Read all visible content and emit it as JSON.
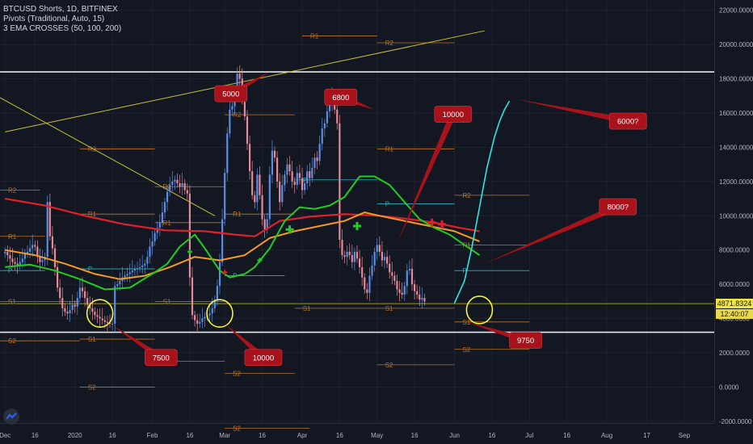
{
  "legend": {
    "symbol": "BTCUSD Shorts, 1D, BITFINEX",
    "pivots": "Pivots (Traditional, Auto, 15)",
    "ema": "3 EMA CROSSES (50, 100, 200)"
  },
  "colors": {
    "background": "#131722",
    "candle_up": "#5b8ee6",
    "candle_down": "#e88a9a",
    "ema50": "#22cc22",
    "ema100": "#f59a23",
    "ema200": "#e0202a",
    "projection": "#2ee6e6",
    "pivot": "#b8762c",
    "pivot_p": "#2ab3c0",
    "trend": "#c8c038",
    "annotation": "#a8121a",
    "highlight": "#f5f542"
  },
  "price_tag": "4871.8324",
  "time_tag": "12:40:07",
  "chart_data": {
    "type": "candlestick",
    "series_label": "BTCUSD Shorts",
    "timeframe": "1D",
    "y_ticks": [
      "22000.0000",
      "20000.0000",
      "18000.0000",
      "16000.0000",
      "14000.0000",
      "12000.0000",
      "10000.0000",
      "8000.0000",
      "6000.0000",
      "4000.0000",
      "2000.0000",
      "0.0000",
      "-2000.0000"
    ],
    "ylim": [
      -2100,
      22600
    ],
    "x_ticks": [
      {
        "label": "Dec",
        "i": 0
      },
      {
        "label": "16",
        "i": 12
      },
      {
        "label": "2020",
        "i": 28
      },
      {
        "label": "16",
        "i": 43
      },
      {
        "label": "Feb",
        "i": 59
      },
      {
        "label": "16",
        "i": 74
      },
      {
        "label": "Mar",
        "i": 88
      },
      {
        "label": "16",
        "i": 103
      },
      {
        "label": "Apr",
        "i": 119
      },
      {
        "label": "16",
        "i": 134
      },
      {
        "label": "May",
        "i": 149
      },
      {
        "label": "16",
        "i": 164
      },
      {
        "label": "Jun",
        "i": 180
      },
      {
        "label": "16",
        "i": 195
      },
      {
        "label": "Jul",
        "i": 210
      },
      {
        "label": "16",
        "i": 225
      },
      {
        "label": "Aug",
        "i": 241
      },
      {
        "label": "17",
        "i": 257
      },
      {
        "label": "Sep",
        "i": 272
      }
    ],
    "xlim": [
      -2,
      284
    ],
    "closes": [
      7900,
      7700,
      7500,
      7300,
      7200,
      7100,
      7300,
      7500,
      7800,
      7900,
      8100,
      8300,
      8200,
      7600,
      7300,
      7400,
      7600,
      10800,
      8800,
      8100,
      7000,
      5800,
      5200,
      4600,
      4400,
      4300,
      4500,
      4800,
      4700,
      5200,
      5800,
      5600,
      5200,
      4800,
      4600,
      4400,
      4200,
      4100,
      4000,
      3900,
      3800,
      3750,
      3700,
      3700,
      5900,
      6000,
      6200,
      6400,
      6500,
      6600,
      6700,
      6800,
      6900,
      6950,
      7000,
      7100,
      7200,
      7600,
      8200,
      8500,
      9000,
      9300,
      9600,
      10200,
      10800,
      11400,
      11800,
      12000,
      12100,
      11900,
      11700,
      11900,
      11500,
      11300,
      6400,
      4200,
      3900,
      3700,
      3800,
      4000,
      4100,
      4200,
      4300,
      4600,
      5100,
      5900,
      7300,
      9800,
      12500,
      14800,
      16200,
      16400,
      17200,
      18300,
      18000,
      17000,
      15800,
      14200,
      12600,
      11200,
      10800,
      12400,
      11200,
      9800,
      9200,
      9800,
      12400,
      13800,
      13400,
      12000,
      10800,
      11800,
      12400,
      13000,
      12600,
      12000,
      11800,
      12500,
      12200,
      11500,
      11900,
      12600,
      12200,
      12800,
      13400,
      13200,
      14200,
      15100,
      15400,
      16100,
      16600,
      16900,
      16200,
      15400,
      8600,
      7700,
      7600,
      7900,
      7700,
      7300,
      7900,
      7500,
      7000,
      6400,
      5700,
      5500,
      6500,
      7100,
      7900,
      8300,
      7900,
      7400,
      7600,
      7200,
      6700,
      6500,
      6200,
      5700,
      5500,
      5400,
      5900,
      6800,
      6900,
      6000,
      5600,
      5400,
      5100,
      5200,
      5000
    ],
    "ema50": [
      [
        0,
        7000
      ],
      [
        10,
        7150
      ],
      [
        20,
        6800
      ],
      [
        30,
        6300
      ],
      [
        40,
        5700
      ],
      [
        50,
        5800
      ],
      [
        60,
        6700
      ],
      [
        65,
        7200
      ],
      [
        70,
        8200
      ],
      [
        76,
        8900
      ],
      [
        80,
        8100
      ],
      [
        86,
        6800
      ],
      [
        90,
        6400
      ],
      [
        96,
        6600
      ],
      [
        100,
        7000
      ],
      [
        106,
        8100
      ],
      [
        112,
        9700
      ],
      [
        118,
        10500
      ],
      [
        124,
        10400
      ],
      [
        130,
        10600
      ],
      [
        136,
        11100
      ],
      [
        142,
        12300
      ],
      [
        148,
        12300
      ],
      [
        154,
        11800
      ],
      [
        160,
        10800
      ],
      [
        166,
        9800
      ],
      [
        172,
        9300
      ],
      [
        178,
        8900
      ],
      [
        184,
        8300
      ],
      [
        190,
        7700
      ]
    ],
    "ema100": [
      [
        0,
        8000
      ],
      [
        12,
        7700
      ],
      [
        24,
        7200
      ],
      [
        36,
        6600
      ],
      [
        46,
        6300
      ],
      [
        56,
        6500
      ],
      [
        66,
        7000
      ],
      [
        76,
        7600
      ],
      [
        86,
        7400
      ],
      [
        96,
        7700
      ],
      [
        106,
        8700
      ],
      [
        116,
        9100
      ],
      [
        126,
        9400
      ],
      [
        136,
        9700
      ],
      [
        144,
        10200
      ],
      [
        150,
        10000
      ],
      [
        160,
        9700
      ],
      [
        170,
        9400
      ],
      [
        180,
        9100
      ],
      [
        190,
        8500
      ]
    ],
    "ema200": [
      [
        0,
        11000
      ],
      [
        16,
        10600
      ],
      [
        32,
        10000
      ],
      [
        48,
        9500
      ],
      [
        64,
        9150
      ],
      [
        80,
        9100
      ],
      [
        92,
        8900
      ],
      [
        100,
        8800
      ],
      [
        110,
        9700
      ],
      [
        122,
        9950
      ],
      [
        136,
        10100
      ],
      [
        150,
        10000
      ],
      [
        162,
        9800
      ],
      [
        172,
        9600
      ],
      [
        182,
        9300
      ],
      [
        190,
        9100
      ]
    ],
    "projection": [
      [
        180,
        4900
      ],
      [
        184,
        6200
      ],
      [
        187,
        8200
      ],
      [
        190,
        10500
      ],
      [
        193,
        12800
      ],
      [
        196,
        14600
      ],
      [
        198,
        15500
      ],
      [
        200,
        16200
      ],
      [
        202,
        16700
      ]
    ],
    "resistance_lines": [
      18400,
      3200
    ],
    "current_price_line": 4871.8324,
    "trendlines": [
      {
        "from": [
          -2,
          16900
        ],
        "to": [
          84,
          10000
        ],
        "label": ""
      },
      {
        "from": [
          0,
          14900
        ],
        "to": [
          192,
          20800
        ],
        "label": ""
      }
    ],
    "pivot_levels": [
      {
        "label": "R2",
        "x0": -2,
        "x1": 14,
        "y": 11500
      },
      {
        "label": "R1",
        "x0": -2,
        "x1": 16,
        "y": 8800
      },
      {
        "label": "P",
        "x0": -2,
        "x1": 16,
        "y": 6800
      },
      {
        "label": "S1",
        "x0": -2,
        "x1": 30,
        "y": 5000
      },
      {
        "label": "S2",
        "x0": -2,
        "x1": 30,
        "y": 2700
      },
      {
        "label": "R2",
        "x0": 30,
        "x1": 60,
        "y": 13900
      },
      {
        "label": "R1",
        "x0": 30,
        "x1": 60,
        "y": 10100
      },
      {
        "label": "P",
        "x0": 30,
        "x1": 60,
        "y": 6900
      },
      {
        "label": "S1",
        "x0": 30,
        "x1": 60,
        "y": 2800
      },
      {
        "label": "S2",
        "x0": 30,
        "x1": 60,
        "y": 0
      },
      {
        "label": "R2",
        "x0": 60,
        "x1": 88,
        "y": 11700
      },
      {
        "label": "R1",
        "x0": 60,
        "x1": 88,
        "y": 9600
      },
      {
        "label": "P",
        "x0": 88,
        "x1": 112,
        "y": 6500
      },
      {
        "label": "S1",
        "x0": 60,
        "x1": 88,
        "y": 5000
      },
      {
        "label": "S2",
        "x0": 60,
        "x1": 88,
        "y": 1500
      },
      {
        "label": "R2",
        "x0": 88,
        "x1": 116,
        "y": 15900
      },
      {
        "label": "R1",
        "x0": 88,
        "x1": 116,
        "y": 10100
      },
      {
        "label": "P",
        "x0": 116,
        "x1": 149,
        "y": 12100
      },
      {
        "label": "S1",
        "x0": 116,
        "x1": 149,
        "y": 4600
      },
      {
        "label": "S2",
        "x0": 88,
        "x1": 116,
        "y": 800
      },
      {
        "label": "R1",
        "x0": 119,
        "x1": 149,
        "y": 20500
      },
      {
        "label": "R2",
        "x0": 149,
        "x1": 180,
        "y": 20100
      },
      {
        "label": "R1",
        "x0": 149,
        "x1": 180,
        "y": 13900
      },
      {
        "label": "P",
        "x0": 149,
        "x1": 180,
        "y": 10700
      },
      {
        "label": "S1",
        "x0": 149,
        "x1": 180,
        "y": 4600
      },
      {
        "label": "S2",
        "x0": 149,
        "x1": 180,
        "y": 1300
      },
      {
        "label": "R2",
        "x0": 180,
        "x1": 210,
        "y": 11200
      },
      {
        "label": "R1",
        "x0": 180,
        "x1": 210,
        "y": 8300
      },
      {
        "label": "P",
        "x0": 180,
        "x1": 210,
        "y": 6800
      },
      {
        "label": "S1",
        "x0": 180,
        "x1": 210,
        "y": 3800
      },
      {
        "label": "S2",
        "x0": 180,
        "x1": 210,
        "y": 2200
      },
      {
        "label": "S2",
        "x0": 88,
        "x1": 122,
        "y": -2400
      }
    ],
    "pivot_level_labels": [
      "R2",
      "R1",
      "P",
      "S1",
      "S2"
    ],
    "cross_markers": [
      {
        "i": 74,
        "y": 7900,
        "color": "#22cc22",
        "size": "small"
      },
      {
        "i": 88,
        "y": 6700,
        "color": "#e0202a",
        "size": "small"
      },
      {
        "i": 102,
        "y": 7400,
        "color": "#22cc22",
        "size": "small"
      },
      {
        "i": 114,
        "y": 9200,
        "color": "#22cc22",
        "size": "big"
      },
      {
        "i": 141,
        "y": 9400,
        "color": "#22cc22",
        "size": "big"
      },
      {
        "i": 171,
        "y": 9600,
        "color": "#e0202a",
        "size": "big"
      },
      {
        "i": 175,
        "y": 9500,
        "color": "#e0202a",
        "size": "big"
      }
    ],
    "circles": [
      {
        "i": 38,
        "y": 4300
      },
      {
        "i": 86,
        "y": 4300
      },
      {
        "i": 190,
        "y": 4500
      }
    ],
    "annotations": [
      {
        "text": "5000",
        "box": [
          84,
          17600
        ],
        "tip": [
          106,
          18400
        ]
      },
      {
        "text": "6800",
        "box": [
          128,
          17400
        ],
        "tip": [
          148,
          16200
        ]
      },
      {
        "text": "10000",
        "box": [
          172,
          16400
        ],
        "tip": [
          157,
          8400
        ]
      },
      {
        "text": "6000?",
        "box": [
          242,
          16000
        ],
        "tip": [
          205,
          16800
        ]
      },
      {
        "text": "8000?",
        "box": [
          238,
          11000
        ],
        "tip": [
          192,
          7200
        ]
      },
      {
        "text": "7500",
        "box": [
          56,
          2200
        ],
        "tip": [
          43,
          3600
        ]
      },
      {
        "text": "10000",
        "box": [
          96,
          2200
        ],
        "tip": [
          88,
          3700
        ]
      },
      {
        "text": "9750",
        "box": [
          202,
          3200
        ],
        "tip": [
          185,
          3800
        ]
      }
    ]
  }
}
